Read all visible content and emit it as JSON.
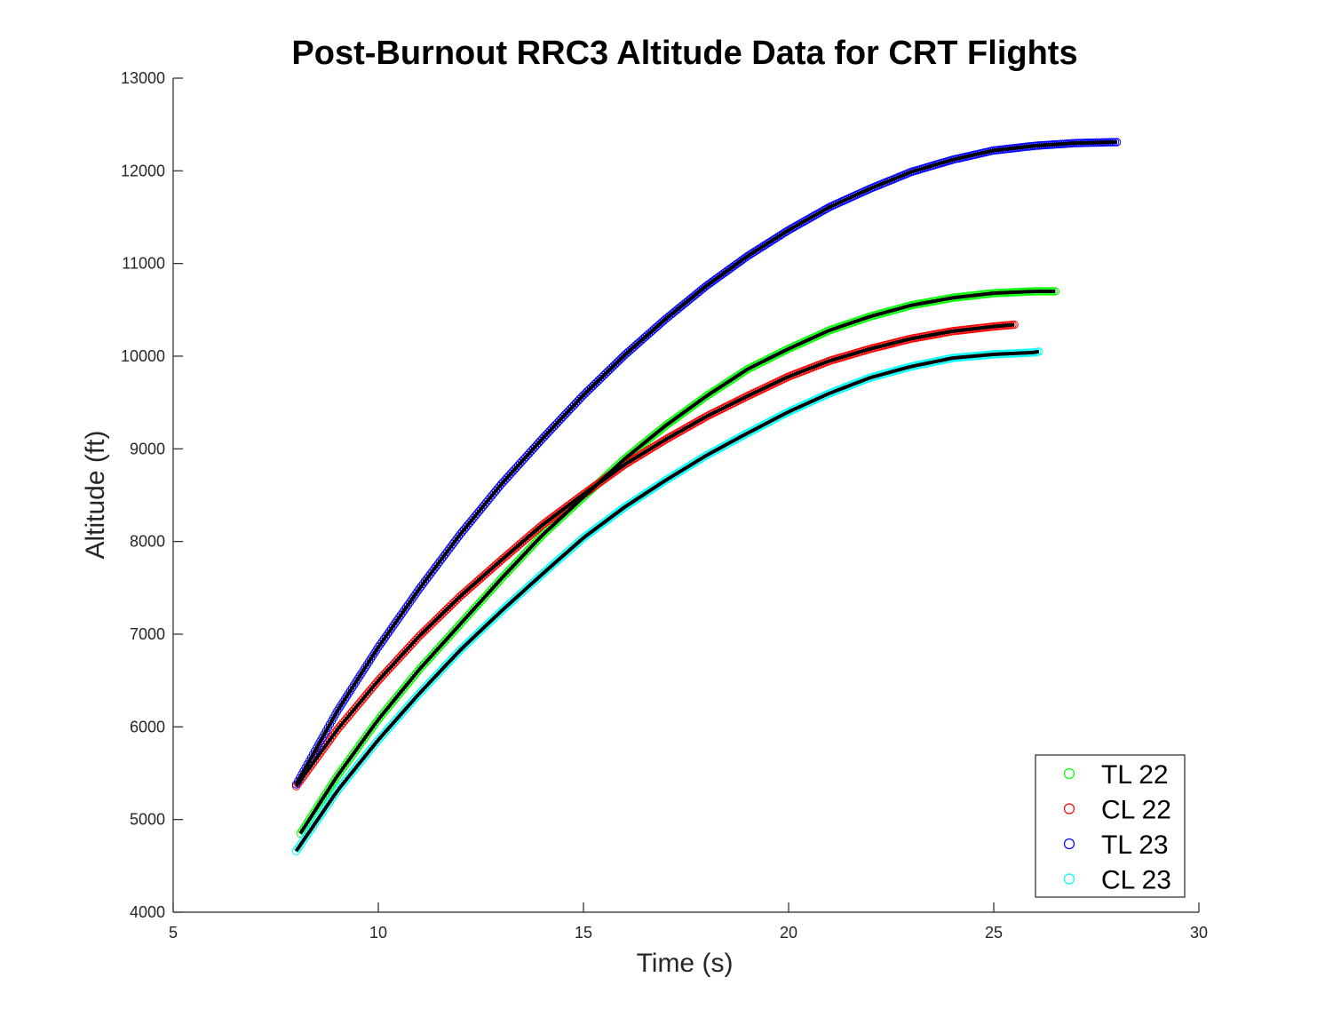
{
  "chart_data": {
    "type": "scatter",
    "title": "Post-Burnout RRC3 Altitude Data for CRT Flights",
    "xlabel": "Time (s)",
    "ylabel": "Altitude (ft)",
    "xlim": [
      5,
      30
    ],
    "ylim": [
      4000,
      13000
    ],
    "xticks": [
      5,
      10,
      15,
      20,
      25,
      30
    ],
    "yticks": [
      4000,
      5000,
      6000,
      7000,
      8000,
      9000,
      10000,
      11000,
      12000,
      13000
    ],
    "grid": false,
    "legend_position": "bottom-right",
    "marker": "open-circle",
    "fit_line_color": "#000000",
    "series": [
      {
        "name": "TL 22",
        "color": "#00ff00",
        "x": [
          8.1,
          9,
          10,
          11,
          12,
          13,
          14,
          15,
          16,
          17,
          18,
          19,
          20,
          21,
          22,
          23,
          24,
          25,
          26,
          26.5
        ],
        "y": [
          4850,
          5470,
          6080,
          6620,
          7110,
          7600,
          8070,
          8480,
          8890,
          9250,
          9570,
          9860,
          10080,
          10280,
          10430,
          10550,
          10630,
          10680,
          10700,
          10700
        ]
      },
      {
        "name": "CL 22",
        "color": "#ff0000",
        "x": [
          8,
          9,
          10,
          11,
          12,
          13,
          14,
          15,
          16,
          17,
          18,
          19,
          20,
          21,
          22,
          23,
          24,
          25,
          25.5
        ],
        "y": [
          5360,
          5970,
          6500,
          6980,
          7410,
          7800,
          8180,
          8510,
          8830,
          9100,
          9350,
          9570,
          9780,
          9950,
          10080,
          10190,
          10270,
          10320,
          10340
        ]
      },
      {
        "name": "TL 23",
        "color": "#0000ff",
        "x": [
          8,
          9,
          10,
          11,
          12,
          13,
          14,
          15,
          16,
          17,
          18,
          19,
          20,
          21,
          22,
          23,
          24,
          25,
          26,
          27,
          28
        ],
        "y": [
          5380,
          6170,
          6860,
          7490,
          8080,
          8620,
          9110,
          9580,
          10010,
          10400,
          10760,
          11080,
          11360,
          11610,
          11810,
          11990,
          12120,
          12220,
          12270,
          12300,
          12310
        ]
      },
      {
        "name": "CL 23",
        "color": "#00ffff",
        "x": [
          8,
          9,
          10,
          11,
          12,
          13,
          14,
          15,
          16,
          17,
          18,
          19,
          20,
          21,
          22,
          23,
          24,
          25,
          26,
          26.1
        ],
        "y": [
          4660,
          5310,
          5860,
          6360,
          6830,
          7250,
          7650,
          8040,
          8370,
          8660,
          8930,
          9170,
          9400,
          9600,
          9770,
          9890,
          9980,
          10020,
          10040,
          10050
        ]
      }
    ]
  }
}
